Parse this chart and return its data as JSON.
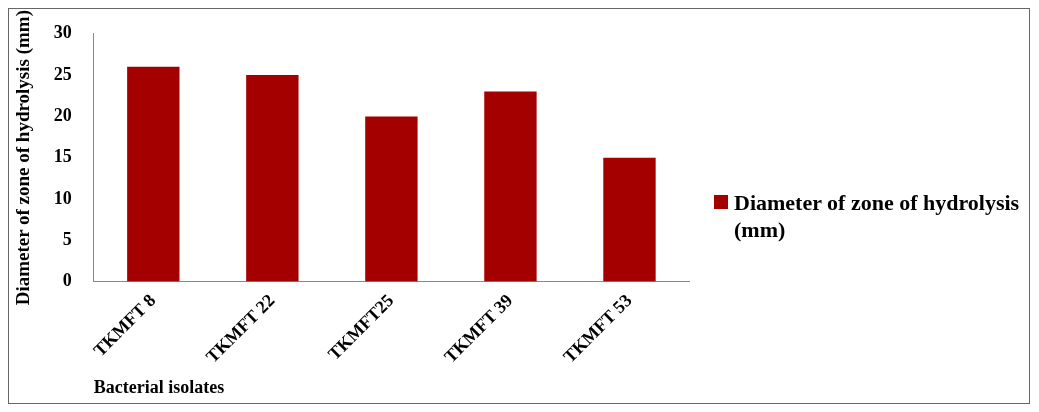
{
  "chart_data": {
    "type": "bar",
    "xlabel": "Bacterial isolates",
    "ylabel": "Diameter of zone of hydrolysis (mm)",
    "categories": [
      "TKMFT 8",
      "TKMFT 22",
      "TKMFT25",
      "TKMFT 39",
      "TKMFT 53"
    ],
    "series": [
      {
        "name": "Diameter of zone of hydrolysis (mm)",
        "color": "#a50000",
        "values": [
          26,
          25,
          20,
          23,
          15
        ]
      }
    ],
    "ylim": [
      0,
      30
    ],
    "yticks": [
      0,
      5,
      10,
      15,
      20,
      25,
      30
    ],
    "grid": false,
    "legend": "right"
  }
}
